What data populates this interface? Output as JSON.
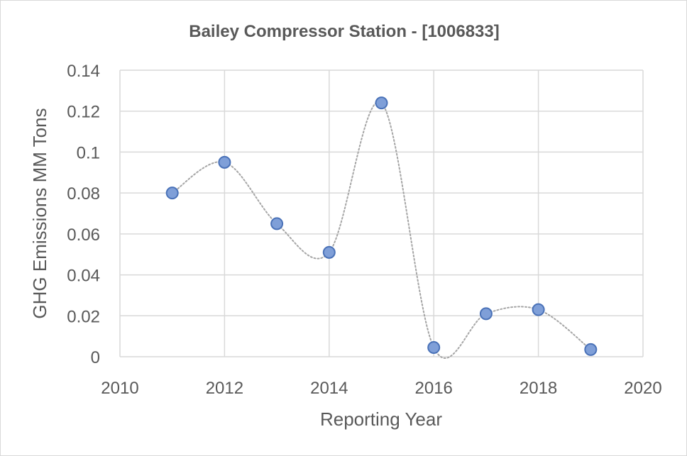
{
  "chart_data": {
    "type": "scatter",
    "title": "Bailey Compressor Station - [1006833]",
    "xlabel": "Reporting Year",
    "ylabel": "GHG Emissions MM Tons",
    "xlim": [
      2010,
      2020
    ],
    "ylim": [
      0,
      0.14
    ],
    "x_ticks": [
      "2010",
      "2012",
      "2014",
      "2016",
      "2018",
      "2020"
    ],
    "y_ticks": [
      "0",
      "0.02",
      "0.04",
      "0.06",
      "0.08",
      "0.1",
      "0.12",
      "0.14"
    ],
    "grid": true,
    "smoothed_dotted_line": true,
    "series": [
      {
        "x": [
          2011,
          2012,
          2013,
          2014,
          2015,
          2016,
          2017,
          2018,
          2019
        ],
        "y": [
          0.08,
          0.095,
          0.065,
          0.051,
          0.124,
          0.0045,
          0.021,
          0.023,
          0.0035
        ]
      }
    ],
    "colors": {
      "marker_fill": "#7f9fd8",
      "marker_stroke": "#4a72b8",
      "trend_line": "#a6a6a6",
      "grid": "#d9d9d9",
      "text": "#595959"
    }
  }
}
